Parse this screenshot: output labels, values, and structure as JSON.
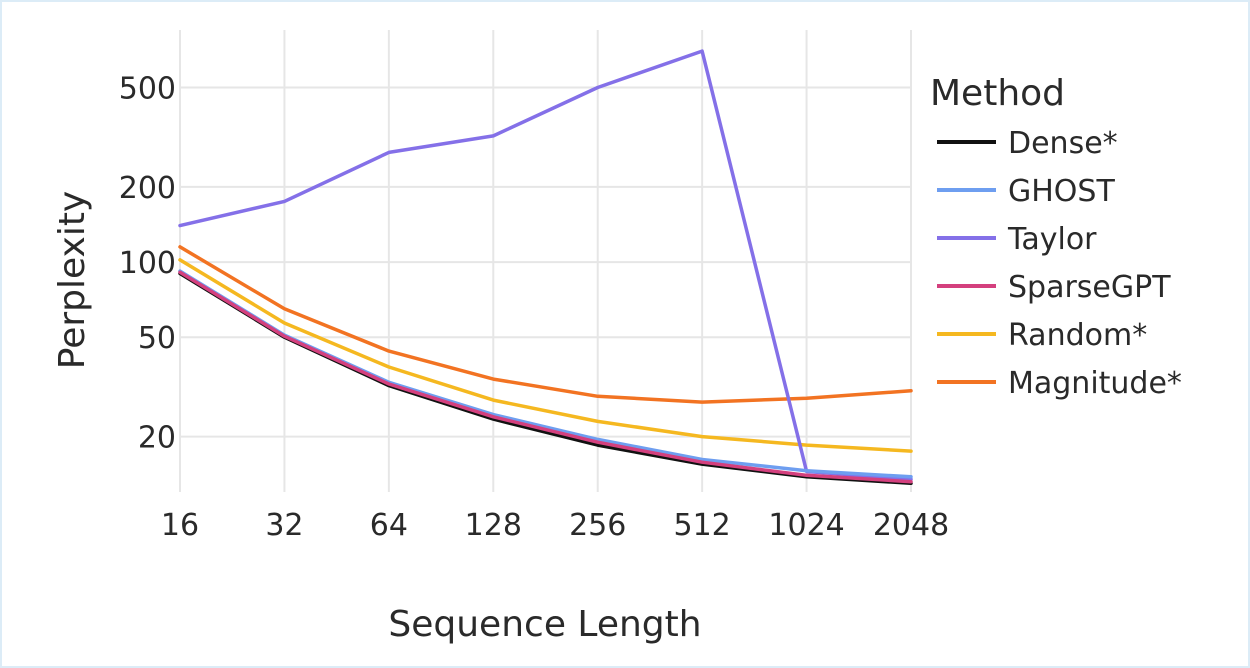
{
  "chart_data": {
    "type": "line",
    "xlabel": "Sequence Length",
    "ylabel": "Perplexity",
    "x_scale": "log2",
    "y_scale": "log",
    "x": [
      16,
      32,
      64,
      128,
      256,
      512,
      1024,
      2048
    ],
    "x_tick_labels": [
      "16",
      "32",
      "64",
      "128",
      "256",
      "512",
      "1024",
      "2048"
    ],
    "y_ticks": [
      20,
      50,
      100,
      200,
      500
    ],
    "y_tick_labels": [
      "20",
      "50",
      "100",
      "200",
      "500"
    ],
    "ylim": [
      12,
      850
    ],
    "grid": true,
    "legend": {
      "title": "Method",
      "position": "right"
    },
    "series": [
      {
        "name": "Dense*",
        "color": "#111111",
        "values": [
          90,
          50,
          32,
          23.5,
          18.5,
          15.5,
          13.8,
          13.0
        ]
      },
      {
        "name": "GHOST",
        "color": "#6e9ef0",
        "values": [
          92,
          51,
          33,
          24.5,
          19.5,
          16.2,
          14.6,
          13.8
        ]
      },
      {
        "name": "Taylor",
        "color": "#8470e8",
        "values": [
          140,
          175,
          275,
          320,
          500,
          700,
          14.5,
          13.5
        ]
      },
      {
        "name": "SparseGPT",
        "color": "#d4407e",
        "values": [
          91,
          50.5,
          32.5,
          24,
          19,
          15.8,
          14.0,
          13.2
        ]
      },
      {
        "name": "Random*",
        "color": "#f5b820",
        "values": [
          102,
          57,
          38,
          28,
          23,
          20,
          18.5,
          17.5
        ]
      },
      {
        "name": "Magnitude*",
        "color": "#f27322",
        "values": [
          115,
          65,
          44,
          34,
          29,
          27.5,
          28.5,
          30.5
        ]
      }
    ]
  }
}
